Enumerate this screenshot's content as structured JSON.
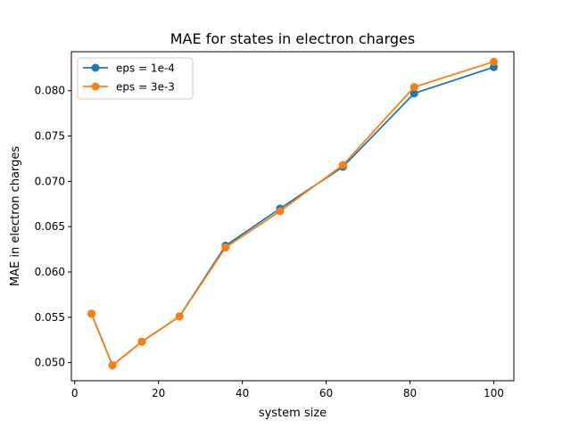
{
  "chart_data": {
    "type": "line",
    "title": "MAE for states in electron charges",
    "xlabel": "system size",
    "ylabel": "MAE in electron charges",
    "xlim": [
      -0.8,
      104.8
    ],
    "ylim": [
      0.048,
      0.0843
    ],
    "xticks": [
      0,
      20,
      40,
      60,
      80,
      100
    ],
    "xtick_labels": [
      "0",
      "20",
      "40",
      "60",
      "80",
      "100"
    ],
    "yticks": [
      0.05,
      0.055,
      0.06,
      0.065,
      0.07,
      0.075,
      0.08
    ],
    "ytick_labels": [
      "0.050",
      "0.055",
      "0.060",
      "0.065",
      "0.070",
      "0.075",
      "0.080"
    ],
    "grid": false,
    "legend_position": "upper-left",
    "x": [
      4,
      9,
      16,
      25,
      36,
      49,
      64,
      81,
      100
    ],
    "series": [
      {
        "name": "eps = 1e-4",
        "color": "#1f77b4",
        "marker": "circle",
        "values": [
          0.0554,
          0.0497,
          0.0523,
          0.0551,
          0.0629,
          0.067,
          0.0716,
          0.0797,
          0.0826
        ]
      },
      {
        "name": "eps = 3e-3",
        "color": "#ff7f0e",
        "marker": "circle",
        "values": [
          0.0554,
          0.0497,
          0.0523,
          0.0551,
          0.0627,
          0.0667,
          0.0718,
          0.0804,
          0.0832
        ]
      }
    ]
  }
}
